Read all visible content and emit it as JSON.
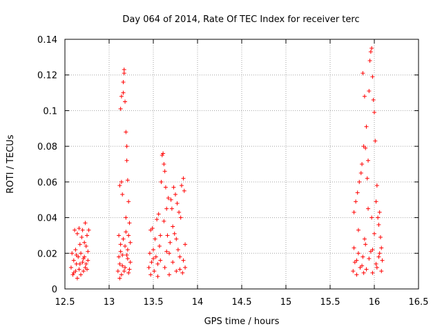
{
  "chart_data": {
    "type": "scatter",
    "title": "Day 064 of 2014, Rate Of TEC Index for receiver terc",
    "xlabel": "GPS time / hours",
    "ylabel": "ROTI / TECUs",
    "xlim": [
      12.5,
      16.5
    ],
    "ylim": [
      0,
      0.14
    ],
    "grid": true,
    "marker": "+",
    "x_ticks": [
      "12.5",
      "13",
      "13.5",
      "14",
      "14.5",
      "15",
      "15.5",
      "16",
      "16.5"
    ],
    "y_ticks": [
      "0",
      "0.02",
      "0.04",
      "0.06",
      "0.08",
      "0.1",
      "0.12",
      "0.14"
    ],
    "series": [
      {
        "name": "terc",
        "color": "#ff0000",
        "points": [
          [
            12.57,
            0.012
          ],
          [
            12.58,
            0.02
          ],
          [
            12.59,
            0.008
          ],
          [
            12.6,
            0.016
          ],
          [
            12.61,
            0.033
          ],
          [
            12.62,
            0.01
          ],
          [
            12.62,
            0.022
          ],
          [
            12.63,
            0.014
          ],
          [
            12.64,
            0.031
          ],
          [
            12.64,
            0.006
          ],
          [
            12.65,
            0.018
          ],
          [
            12.66,
            0.034
          ],
          [
            12.66,
            0.011
          ],
          [
            12.67,
            0.025
          ],
          [
            12.68,
            0.008
          ],
          [
            12.68,
            0.02
          ],
          [
            12.69,
            0.029
          ],
          [
            12.7,
            0.015
          ],
          [
            12.7,
            0.033
          ],
          [
            12.71,
            0.01
          ],
          [
            12.72,
            0.026
          ],
          [
            12.72,
            0.018
          ],
          [
            12.73,
            0.037
          ],
          [
            12.73,
            0.012
          ],
          [
            12.74,
            0.024
          ],
          [
            12.74,
            0.014
          ],
          [
            12.75,
            0.03
          ],
          [
            12.76,
            0.016
          ],
          [
            12.76,
            0.021
          ],
          [
            12.77,
            0.033
          ],
          [
            12.6,
            0.009
          ],
          [
            12.63,
            0.019
          ],
          [
            12.67,
            0.014
          ],
          [
            12.71,
            0.017
          ],
          [
            12.75,
            0.011
          ],
          [
            13.1,
            0.01
          ],
          [
            13.11,
            0.018
          ],
          [
            13.11,
            0.03
          ],
          [
            13.12,
            0.058
          ],
          [
            13.12,
            0.006
          ],
          [
            13.13,
            0.101
          ],
          [
            13.13,
            0.021
          ],
          [
            13.14,
            0.108
          ],
          [
            13.14,
            0.06
          ],
          [
            13.15,
            0.053
          ],
          [
            13.15,
            0.013
          ],
          [
            13.16,
            0.116
          ],
          [
            13.16,
            0.11
          ],
          [
            13.17,
            0.123
          ],
          [
            13.17,
            0.121
          ],
          [
            13.18,
            0.105
          ],
          [
            13.18,
            0.024
          ],
          [
            13.19,
            0.04
          ],
          [
            13.19,
            0.088
          ],
          [
            13.2,
            0.08
          ],
          [
            13.2,
            0.072
          ],
          [
            13.21,
            0.061
          ],
          [
            13.21,
            0.017
          ],
          [
            13.22,
            0.049
          ],
          [
            13.22,
            0.03
          ],
          [
            13.23,
            0.037
          ],
          [
            13.23,
            0.011
          ],
          [
            13.24,
            0.026
          ],
          [
            13.24,
            0.015
          ],
          [
            13.17,
            0.01
          ],
          [
            13.12,
            0.014
          ],
          [
            13.14,
            0.008
          ],
          [
            13.16,
            0.028
          ],
          [
            13.18,
            0.012
          ],
          [
            13.2,
            0.019
          ],
          [
            13.22,
            0.009
          ],
          [
            13.13,
            0.025
          ],
          [
            13.19,
            0.032
          ],
          [
            13.15,
            0.019
          ],
          [
            13.21,
            0.022
          ],
          [
            13.45,
            0.012
          ],
          [
            13.46,
            0.02
          ],
          [
            13.47,
            0.033
          ],
          [
            13.47,
            0.008
          ],
          [
            13.48,
            0.015
          ],
          [
            13.49,
            0.034
          ],
          [
            13.5,
            0.022
          ],
          [
            13.51,
            0.01
          ],
          [
            13.52,
            0.028
          ],
          [
            13.53,
            0.018
          ],
          [
            13.54,
            0.039
          ],
          [
            13.55,
            0.007
          ],
          [
            13.56,
            0.042
          ],
          [
            13.57,
            0.024
          ],
          [
            13.58,
            0.016
          ],
          [
            13.59,
            0.06
          ],
          [
            13.6,
            0.075
          ],
          [
            13.61,
            0.076
          ],
          [
            13.62,
            0.07
          ],
          [
            13.62,
            0.038
          ],
          [
            13.63,
            0.066
          ],
          [
            13.63,
            0.012
          ],
          [
            13.64,
            0.057
          ],
          [
            13.65,
            0.045
          ],
          [
            13.65,
            0.021
          ],
          [
            13.66,
            0.03
          ],
          [
            13.67,
            0.051
          ],
          [
            13.68,
            0.008
          ],
          [
            13.69,
            0.026
          ],
          [
            13.7,
            0.05
          ],
          [
            13.71,
            0.045
          ],
          [
            13.72,
            0.015
          ],
          [
            13.73,
            0.057
          ],
          [
            13.74,
            0.031
          ],
          [
            13.75,
            0.053
          ],
          [
            13.76,
            0.01
          ],
          [
            13.77,
            0.048
          ],
          [
            13.78,
            0.022
          ],
          [
            13.79,
            0.043
          ],
          [
            13.8,
            0.018
          ],
          [
            13.81,
            0.04
          ],
          [
            13.82,
            0.058
          ],
          [
            13.83,
            0.009
          ],
          [
            13.84,
            0.062
          ],
          [
            13.85,
            0.055
          ],
          [
            13.86,
            0.025
          ],
          [
            13.86,
            0.012
          ],
          [
            13.55,
            0.014
          ],
          [
            13.58,
            0.03
          ],
          [
            13.68,
            0.02
          ],
          [
            13.72,
            0.035
          ],
          [
            13.76,
            0.028
          ],
          [
            13.8,
            0.011
          ],
          [
            13.84,
            0.016
          ],
          [
            13.5,
            0.017
          ],
          [
            15.76,
            0.01
          ],
          [
            15.77,
            0.023
          ],
          [
            15.77,
            0.043
          ],
          [
            15.78,
            0.015
          ],
          [
            15.79,
            0.049
          ],
          [
            15.8,
            0.008
          ],
          [
            15.81,
            0.054
          ],
          [
            15.82,
            0.02
          ],
          [
            15.83,
            0.06
          ],
          [
            15.84,
            0.012
          ],
          [
            15.85,
            0.065
          ],
          [
            15.86,
            0.07
          ],
          [
            15.87,
            0.121
          ],
          [
            15.87,
            0.018
          ],
          [
            15.88,
            0.08
          ],
          [
            15.89,
            0.108
          ],
          [
            15.89,
            0.028
          ],
          [
            15.9,
            0.079
          ],
          [
            15.91,
            0.091
          ],
          [
            15.91,
            0.011
          ],
          [
            15.92,
            0.062
          ],
          [
            15.93,
            0.072
          ],
          [
            15.93,
            0.045
          ],
          [
            15.94,
            0.111
          ],
          [
            15.95,
            0.128
          ],
          [
            15.96,
            0.133
          ],
          [
            15.97,
            0.135
          ],
          [
            15.97,
            0.04
          ],
          [
            15.98,
            0.119
          ],
          [
            15.98,
            0.022
          ],
          [
            15.99,
            0.106
          ],
          [
            16.0,
            0.099
          ],
          [
            16.0,
            0.031
          ],
          [
            16.01,
            0.083
          ],
          [
            16.02,
            0.049
          ],
          [
            16.02,
            0.014
          ],
          [
            16.03,
            0.058
          ],
          [
            16.04,
            0.04
          ],
          [
            16.05,
            0.036
          ],
          [
            16.05,
            0.018
          ],
          [
            16.06,
            0.043
          ],
          [
            16.07,
            0.029
          ],
          [
            16.08,
            0.01
          ],
          [
            16.08,
            0.023
          ],
          [
            16.09,
            0.016
          ],
          [
            15.82,
            0.033
          ],
          [
            15.86,
            0.013
          ],
          [
            15.9,
            0.025
          ],
          [
            15.94,
            0.017
          ],
          [
            15.98,
            0.009
          ],
          [
            16.03,
            0.012
          ],
          [
            16.06,
            0.02
          ],
          [
            15.8,
            0.016
          ],
          [
            15.88,
            0.009
          ],
          [
            15.96,
            0.021
          ]
        ]
      }
    ]
  }
}
